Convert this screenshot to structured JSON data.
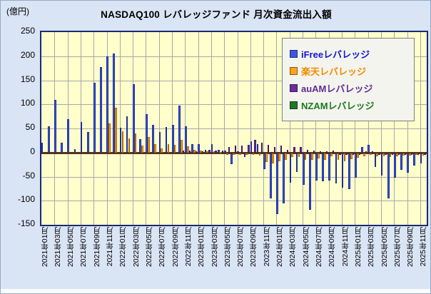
{
  "title": "NASDAQ100 レバレッジファンド 月次資金流出入額",
  "unit_label": "(億円)",
  "colors": {
    "page_bg": "#d9e4f5",
    "plot_bg": "#ffffcc",
    "plot_border": "#1a2a75",
    "gridline": "#a8a8a8",
    "zero_line": "#5a330f",
    "series_fill": [
      "#3d56e0",
      "#ffa21f",
      "#6b2fa0",
      "#217821"
    ],
    "series_border": [
      "#1b2e9e",
      "#b06a00",
      "#45156e",
      "#0f4d0f"
    ],
    "legend_text": [
      "#1414d4",
      "#f08c00",
      "#5c2d91",
      "#1a7a1a"
    ]
  },
  "y_axis": {
    "min": -150,
    "max": 250,
    "step": 50,
    "ticks": [
      250,
      200,
      150,
      100,
      50,
      0,
      -50,
      -100,
      -150
    ]
  },
  "x_axis": {
    "tick_labels": [
      "2021年01月",
      "2021年03月",
      "2021年05月",
      "2021年07月",
      "2021年09月",
      "2021年11月",
      "2022年01月",
      "2022年03月",
      "2022年05月",
      "2022年07月",
      "2022年09月",
      "2022年11月",
      "2023年01月",
      "2023年03月",
      "2023年05月",
      "2023年07月",
      "2023年09月",
      "2023年11月",
      "2024年01月",
      "2024年03月",
      "2024年05月",
      "2024年07月",
      "2024年09月",
      "2024年11月",
      "2025年01月",
      "2025年03月",
      "2025年05月",
      "2025年07月",
      "2025年09月",
      "2025年11月"
    ]
  },
  "legend": {
    "items": [
      "iFreeレバレッジ",
      "楽天レバレッジ",
      "auAMレバレッジ",
      "NZAMレバレッジ"
    ]
  },
  "chart_data": {
    "type": "bar",
    "title": "NASDAQ100 レバレッジファンド 月次資金流出入額",
    "ylabel": "(億円)",
    "ylim": [
      -150,
      250
    ],
    "grid": true,
    "legend_position": "top-right-inside",
    "categories": [
      "2021年01月",
      "2021年02月",
      "2021年03月",
      "2021年04月",
      "2021年05月",
      "2021年06月",
      "2021年07月",
      "2021年08月",
      "2021年09月",
      "2021年10月",
      "2021年11月",
      "2021年12月",
      "2022年01月",
      "2022年02月",
      "2022年03月",
      "2022年04月",
      "2022年05月",
      "2022年06月",
      "2022年07月",
      "2022年08月",
      "2022年09月",
      "2022年10月",
      "2022年11月",
      "2022年12月",
      "2023年01月",
      "2023年02月",
      "2023年03月",
      "2023年04月",
      "2023年05月",
      "2023年06月",
      "2023年07月",
      "2023年08月",
      "2023年09月",
      "2023年10月",
      "2023年11月",
      "2023年12月",
      "2024年01月",
      "2024年02月",
      "2024年03月",
      "2024年04月",
      "2024年05月",
      "2024年06月",
      "2024年07月",
      "2024年08月",
      "2024年09月",
      "2024年10月",
      "2024年11月",
      "2024年12月",
      "2025年01月",
      "2025年02月",
      "2025年03月",
      "2025年04月",
      "2025年05月",
      "2025年06月",
      "2025年07月",
      "2025年08月",
      "2025年09月",
      "2025年10月",
      "2025年11月"
    ],
    "series": [
      {
        "name": "iFreeレバレッジ",
        "values": [
          20,
          55,
          110,
          21,
          69,
          7,
          64,
          42,
          145,
          177,
          200,
          206,
          51,
          75,
          142,
          28,
          79,
          57,
          43,
          53,
          58,
          98,
          55,
          18,
          18,
          5,
          18,
          6,
          4,
          -22,
          3,
          -8,
          24,
          18,
          -33,
          -93,
          -127,
          -104,
          -61,
          -39,
          -66,
          -118,
          -56,
          -58,
          -56,
          -62,
          -71,
          -74,
          -50,
          12,
          16,
          -28,
          -46,
          -94,
          -51,
          -35,
          -41,
          -26,
          -21
        ]
      },
      {
        "name": "楽天レバレッジ",
        "values": [
          0,
          0,
          0,
          0,
          0,
          0,
          0,
          0,
          0,
          0,
          60,
          93,
          44,
          30,
          40,
          14,
          32,
          18,
          9,
          17,
          16,
          27,
          13,
          6,
          4,
          2,
          2,
          1,
          -3,
          -4,
          -2,
          -3,
          -2,
          -5,
          -18,
          -21,
          -16,
          -13,
          -8,
          -8,
          -13,
          -13,
          -11,
          -13,
          -7,
          -13,
          -16,
          -12,
          -9,
          -6,
          -4,
          -6,
          -6,
          -8,
          -6,
          -5,
          -5,
          -4,
          -5
        ]
      },
      {
        "name": "auAMレバレッジ",
        "values": [
          0,
          0,
          0,
          0,
          0,
          0,
          0,
          0,
          0,
          0,
          0,
          0,
          0,
          0,
          0,
          0,
          0,
          0,
          0,
          0,
          0,
          4,
          4,
          3,
          3,
          6,
          4,
          4,
          12,
          15,
          14,
          16,
          26,
          21,
          16,
          12,
          15,
          6,
          12,
          12,
          6,
          4,
          3,
          2,
          4,
          -3,
          -4,
          -3,
          -3,
          3,
          3,
          -2,
          -3,
          -3,
          -3,
          -2,
          -3,
          -2,
          -2
        ]
      },
      {
        "name": "NZAMレバレッジ",
        "values": [
          0,
          0,
          0,
          0,
          0,
          0,
          0,
          0,
          0,
          0,
          0,
          0,
          0,
          0,
          0,
          0,
          0,
          0,
          0,
          0,
          0,
          0,
          0,
          0,
          0,
          0,
          0,
          0,
          0,
          0,
          0,
          0,
          0,
          0,
          0,
          0,
          0,
          0,
          0,
          0,
          0,
          0,
          0,
          0,
          0,
          0,
          0,
          0,
          0,
          0,
          0,
          0,
          0,
          0,
          0,
          0,
          0,
          0,
          0
        ]
      }
    ]
  }
}
